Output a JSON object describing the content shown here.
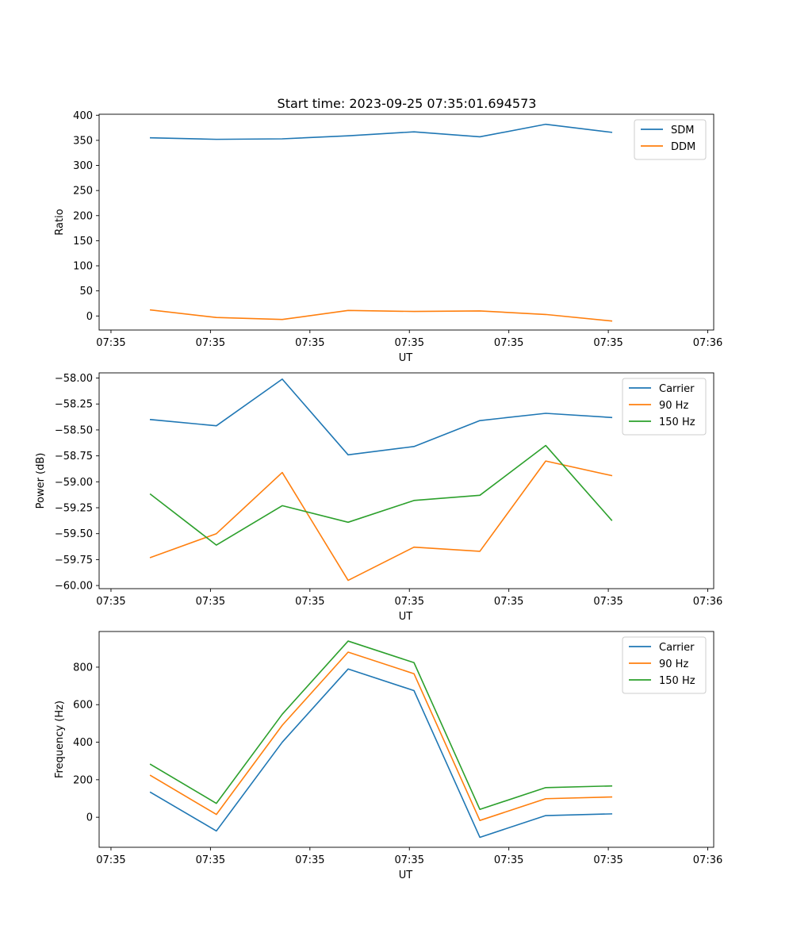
{
  "figure": {
    "title": "Start time: 2023-09-25 07:35:01.694573"
  },
  "colors": {
    "blue": "#1f77b4",
    "orange": "#ff7f0e",
    "green": "#2ca02c"
  },
  "chart_data": [
    {
      "type": "line",
      "title": "Start time: 2023-09-25 07:35:01.694573",
      "xlabel": "UT",
      "ylabel": "Ratio",
      "x": [
        1,
        2,
        3,
        4,
        5,
        6,
        7,
        8
      ],
      "xlim": [
        0.22,
        9.55
      ],
      "x_ticks": [
        0.4,
        1.91,
        3.42,
        4.93,
        6.44,
        7.95,
        9.46
      ],
      "x_tick_labels": [
        "07:35",
        "07:35",
        "07:35",
        "07:35",
        "07:35",
        "07:35",
        "07:36"
      ],
      "ylim": [
        -28,
        402
      ],
      "y_ticks": [
        0,
        50,
        100,
        150,
        200,
        250,
        300,
        350,
        400
      ],
      "y_tick_labels": [
        "0",
        "50",
        "100",
        "150",
        "200",
        "250",
        "300",
        "350",
        "400"
      ],
      "legend": "top-right",
      "series": [
        {
          "name": "SDM",
          "color": "#1f77b4",
          "values": [
            355,
            352,
            353,
            359,
            367,
            357,
            382,
            366
          ]
        },
        {
          "name": "DDM",
          "color": "#ff7f0e",
          "values": [
            12,
            -3,
            -7,
            11,
            9,
            10,
            3,
            -10
          ]
        }
      ]
    },
    {
      "type": "line",
      "title": "",
      "xlabel": "UT",
      "ylabel": "Power (dB)",
      "x": [
        1,
        2,
        3,
        4,
        5,
        6,
        7,
        8
      ],
      "xlim": [
        0.22,
        9.55
      ],
      "x_ticks": [
        0.4,
        1.91,
        3.42,
        4.93,
        6.44,
        7.95,
        9.46
      ],
      "x_tick_labels": [
        "07:35",
        "07:35",
        "07:35",
        "07:35",
        "07:35",
        "07:35",
        "07:36"
      ],
      "ylim": [
        -60.03,
        -57.95
      ],
      "y_ticks": [
        -60.0,
        -59.75,
        -59.5,
        -59.25,
        -59.0,
        -58.75,
        -58.5,
        -58.25,
        -58.0
      ],
      "y_tick_labels": [
        "−60.00",
        "−59.75",
        "−59.50",
        "−59.25",
        "−59.00",
        "−58.75",
        "−58.50",
        "−58.25",
        "−58.00"
      ],
      "legend": "top-right",
      "series": [
        {
          "name": "Carrier",
          "color": "#1f77b4",
          "values": [
            -58.4,
            -58.46,
            -58.01,
            -58.74,
            -58.66,
            -58.41,
            -58.34,
            -58.38
          ]
        },
        {
          "name": "90 Hz",
          "color": "#ff7f0e",
          "values": [
            -59.73,
            -59.5,
            -58.91,
            -59.95,
            -59.63,
            -59.67,
            -58.8,
            -58.94
          ]
        },
        {
          "name": "150 Hz",
          "color": "#2ca02c",
          "values": [
            -59.12,
            -59.61,
            -59.23,
            -59.39,
            -59.18,
            -59.13,
            -58.65,
            -59.37
          ]
        }
      ]
    },
    {
      "type": "line",
      "title": "",
      "xlabel": "UT",
      "ylabel": "Frequency (Hz)",
      "x": [
        1,
        2,
        3,
        4,
        5,
        6,
        7,
        8
      ],
      "xlim": [
        0.22,
        9.55
      ],
      "x_ticks": [
        0.4,
        1.91,
        3.42,
        4.93,
        6.44,
        7.95,
        9.46
      ],
      "x_tick_labels": [
        "07:35",
        "07:35",
        "07:35",
        "07:35",
        "07:35",
        "07:35",
        "07:36"
      ],
      "ylim": [
        -160,
        990
      ],
      "y_ticks": [
        0,
        200,
        400,
        600,
        800
      ],
      "y_tick_labels": [
        "0",
        "200",
        "400",
        "600",
        "800"
      ],
      "legend": "top-right",
      "series": [
        {
          "name": "Carrier",
          "color": "#1f77b4",
          "values": [
            133,
            -73,
            400,
            790,
            675,
            -107,
            9,
            18
          ]
        },
        {
          "name": "90 Hz",
          "color": "#ff7f0e",
          "values": [
            223,
            15,
            490,
            880,
            765,
            -17,
            99,
            108
          ]
        },
        {
          "name": "150 Hz",
          "color": "#2ca02c",
          "values": [
            282,
            74,
            549,
            939,
            824,
            42,
            158,
            167
          ]
        }
      ]
    }
  ]
}
